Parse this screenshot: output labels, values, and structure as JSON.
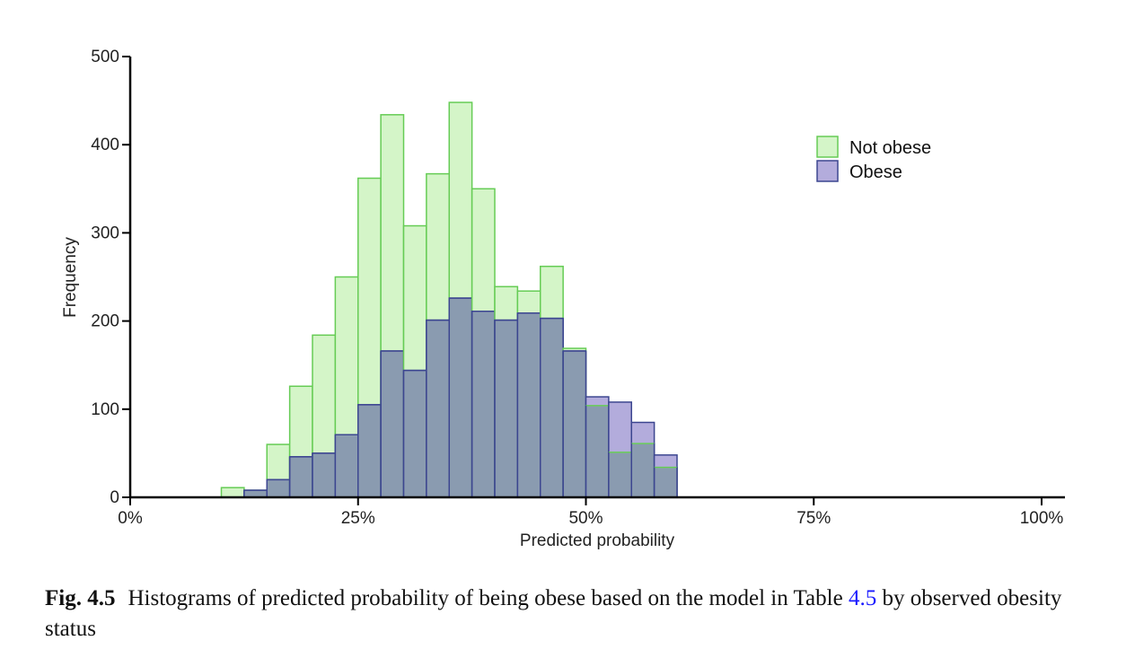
{
  "chart_data": {
    "type": "bar",
    "title": "",
    "xlabel": "Predicted probability",
    "ylabel": "Frequency",
    "xlim": [
      0,
      1
    ],
    "ylim": [
      0,
      500
    ],
    "x_ticks": [
      {
        "value": 0,
        "label": "0%"
      },
      {
        "value": 0.25,
        "label": "25%"
      },
      {
        "value": 0.5,
        "label": "50%"
      },
      {
        "value": 0.75,
        "label": "75%"
      },
      {
        "value": 1,
        "label": "100%"
      }
    ],
    "y_ticks": [
      0,
      100,
      200,
      300,
      400,
      500
    ],
    "bin_width": 0.025,
    "bin_starts": [
      0.1,
      0.125,
      0.15,
      0.175,
      0.2,
      0.225,
      0.25,
      0.275,
      0.3,
      0.325,
      0.35,
      0.375,
      0.4,
      0.425,
      0.45,
      0.475,
      0.5,
      0.525,
      0.55,
      0.575,
      0.6
    ],
    "legend_position": "top-right",
    "grid": false,
    "series": [
      {
        "name": "Not obese",
        "fill": "#d4f5c8",
        "stroke": "#66cc55",
        "values": [
          11,
          8,
          60,
          126,
          184,
          250,
          362,
          434,
          308,
          367,
          448,
          350,
          239,
          234,
          262,
          169,
          104,
          51,
          61,
          34,
          0
        ]
      },
      {
        "name": "Obese",
        "fill": "#b3acdc",
        "stroke": "#3c4690",
        "values": [
          0,
          8,
          20,
          46,
          50,
          71,
          105,
          166,
          144,
          201,
          226,
          211,
          201,
          209,
          203,
          166,
          114,
          108,
          85,
          48,
          0
        ]
      }
    ],
    "overlap_fill": "#8a9bb0"
  },
  "caption": {
    "label": "Fig. 4.5",
    "text_before": "Histograms of predicted probability of being obese based on the model in Table ",
    "ref": "4.5",
    "text_after": " by observed obesity status"
  }
}
